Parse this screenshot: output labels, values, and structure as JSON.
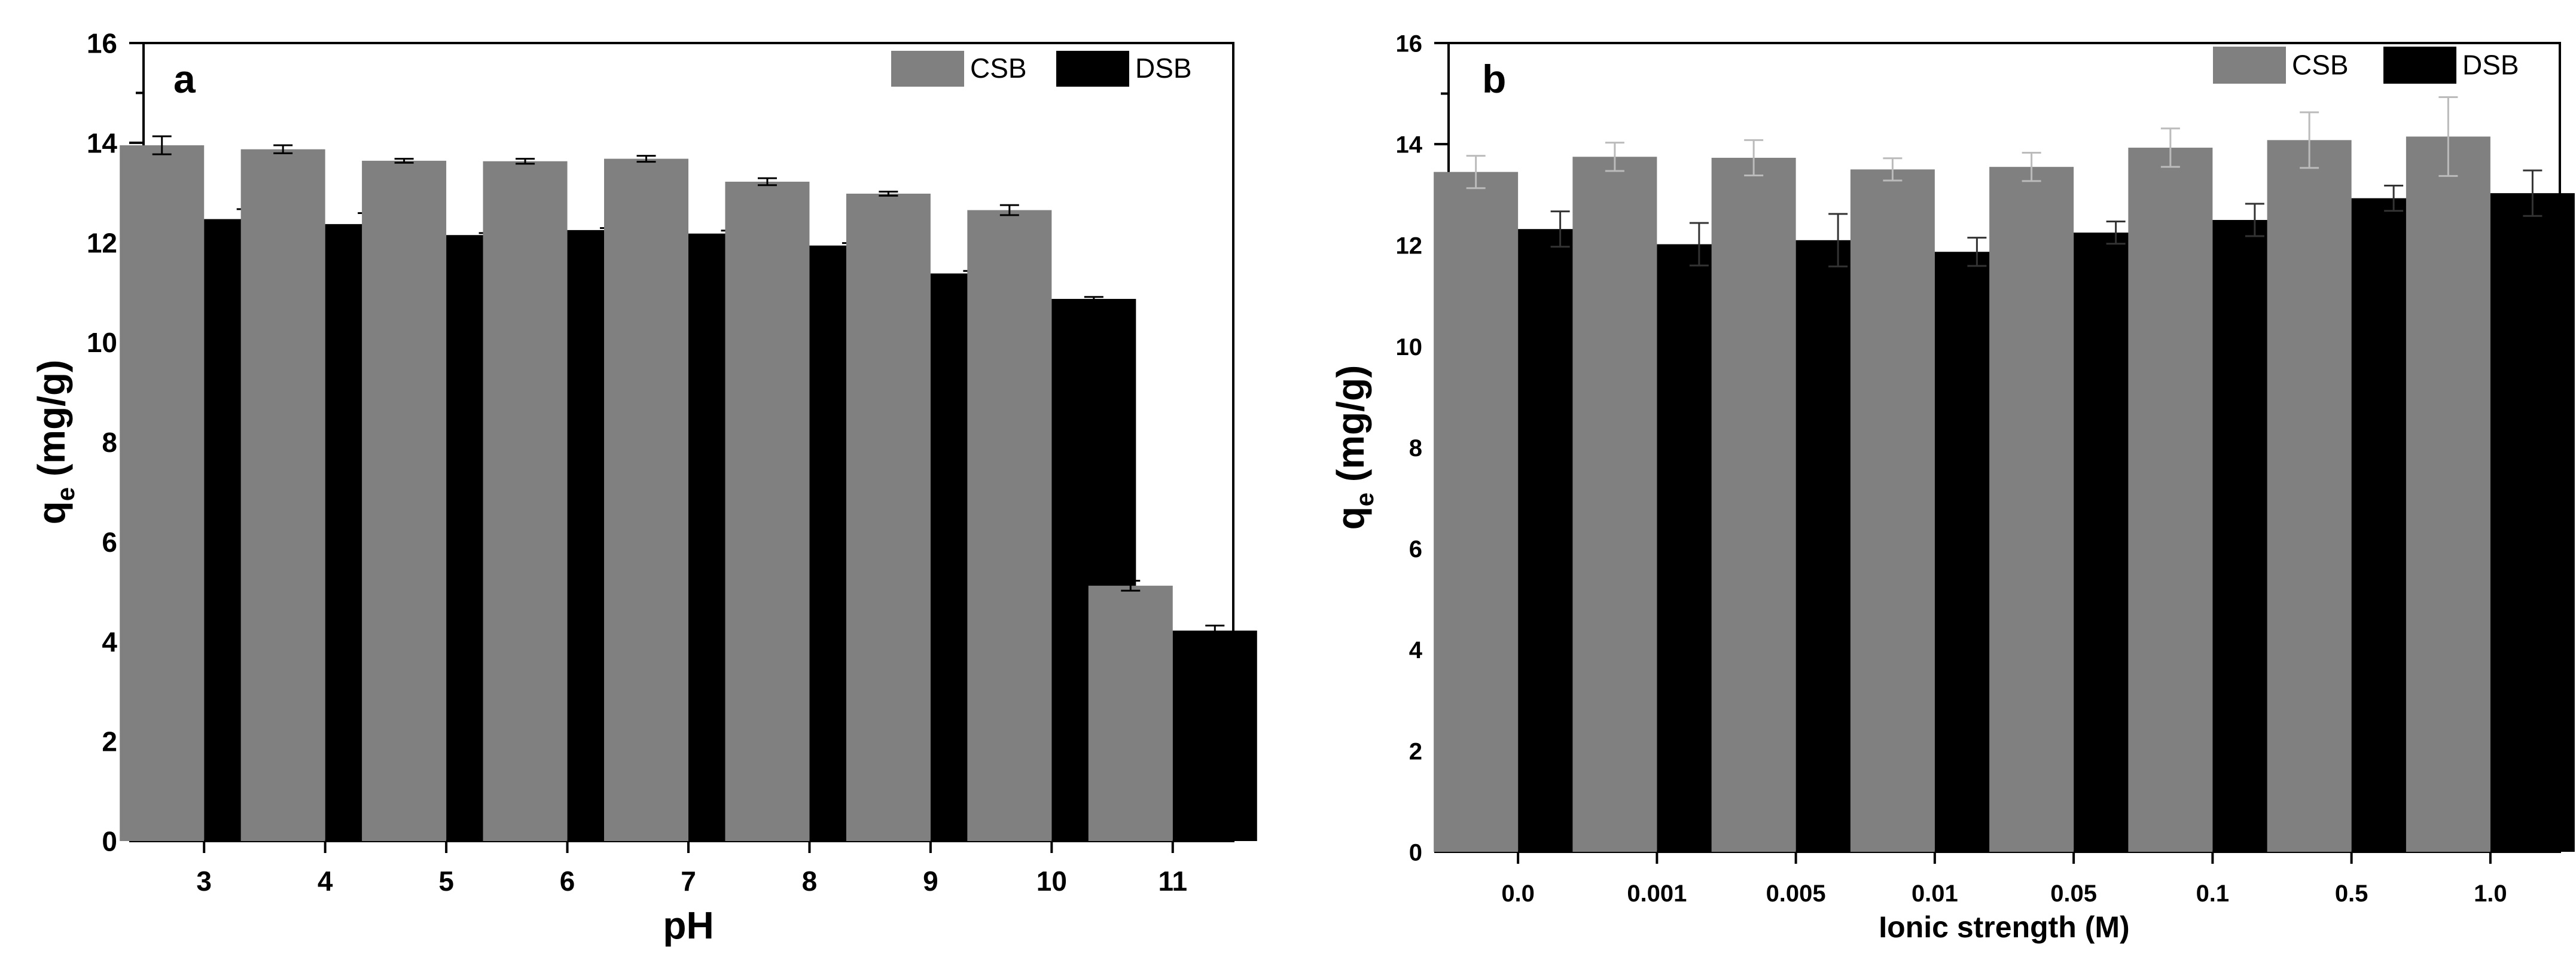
{
  "chart_data": [
    {
      "type": "bar",
      "panel_label": "a",
      "title": "",
      "xlabel": "pH",
      "ylabel_main": "q",
      "ylabel_sub": "e",
      "ylabel_rest": "(mg/g)",
      "ylim": [
        0,
        16
      ],
      "yticks": [
        "0",
        "2",
        "4",
        "6",
        "8",
        "10",
        "12",
        "14",
        "16"
      ],
      "categories": [
        "3",
        "4",
        "5",
        "6",
        "7",
        "8",
        "9",
        "10",
        "11"
      ],
      "legend_position": "top-right",
      "series": [
        {
          "name": "CSB",
          "color": "#808080",
          "values": [
            13.95,
            13.87,
            13.64,
            13.63,
            13.68,
            13.22,
            12.98,
            12.65,
            5.12
          ],
          "errors": [
            0.18,
            0.08,
            0.04,
            0.05,
            0.06,
            0.07,
            0.04,
            0.1,
            0.1
          ]
        },
        {
          "name": "DSB",
          "color": "#000000",
          "values": [
            12.47,
            12.37,
            12.15,
            12.25,
            12.18,
            11.94,
            11.38,
            10.87,
            4.22
          ],
          "errors": [
            0.2,
            0.22,
            0.04,
            0.04,
            0.06,
            0.05,
            0.05,
            0.04,
            0.1
          ]
        }
      ]
    },
    {
      "type": "bar",
      "panel_label": "b",
      "title": "",
      "xlabel": "Ionic strength (M)",
      "ylabel_main": "q",
      "ylabel_sub": "e",
      "ylabel_rest": "(mg/g)",
      "ylim": [
        0,
        16
      ],
      "yticks": [
        "0",
        "2",
        "4",
        "6",
        "8",
        "10",
        "12",
        "14",
        "16"
      ],
      "categories": [
        "0.0",
        "0.001",
        "0.005",
        "0.01",
        "0.05",
        "0.1",
        "0.5",
        "1.0"
      ],
      "legend_position": "top-right",
      "series": [
        {
          "name": "CSB",
          "color": "#808080",
          "values": [
            13.45,
            13.75,
            13.73,
            13.5,
            13.55,
            13.93,
            14.08,
            14.15
          ],
          "errors": [
            0.32,
            0.28,
            0.35,
            0.22,
            0.28,
            0.38,
            0.55,
            0.78
          ]
        },
        {
          "name": "DSB",
          "color": "#000000",
          "values": [
            12.32,
            12.02,
            12.1,
            11.87,
            12.25,
            12.5,
            12.93,
            13.03
          ],
          "errors": [
            0.35,
            0.42,
            0.52,
            0.28,
            0.22,
            0.32,
            0.25,
            0.45
          ]
        }
      ]
    }
  ]
}
